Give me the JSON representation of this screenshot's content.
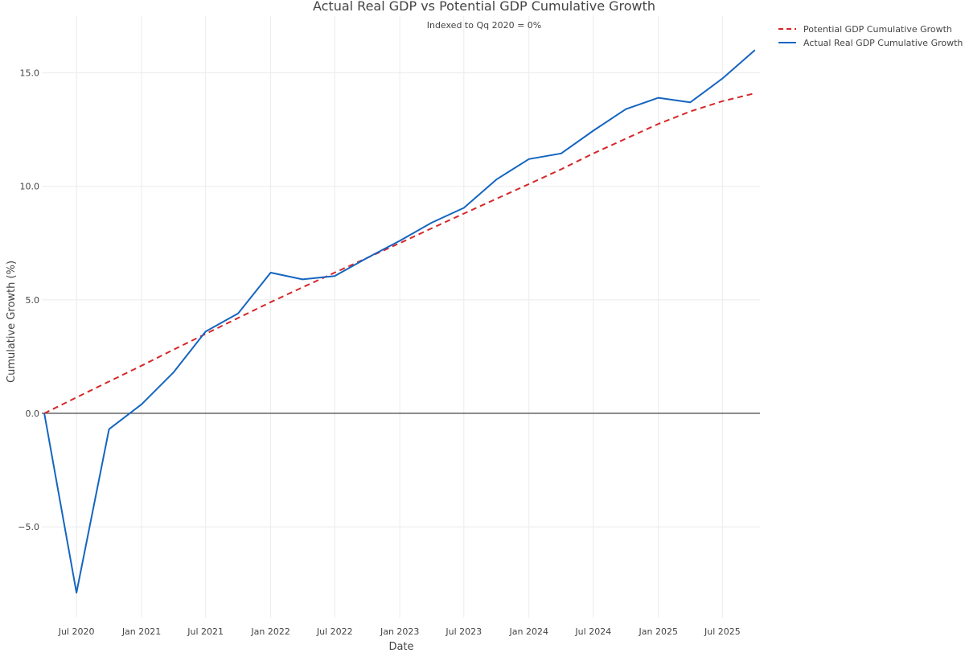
{
  "chart_data": {
    "type": "line",
    "title": "Actual Real GDP vs Potential GDP Cumulative Growth",
    "subtitle": "Indexed to Qq 2020 = 0%",
    "xlabel": "Date",
    "ylabel": "Cumulative Growth (%)",
    "x_range": [
      "2020-03-25",
      "2025-10-15"
    ],
    "ylim": [
      -9.0,
      17.5
    ],
    "x_ticks": [
      {
        "date": "2020-07-01",
        "label": "Jul 2020"
      },
      {
        "date": "2021-01-01",
        "label": "Jan 2021"
      },
      {
        "date": "2021-07-01",
        "label": "Jul 2021"
      },
      {
        "date": "2022-01-01",
        "label": "Jan 2022"
      },
      {
        "date": "2022-07-01",
        "label": "Jul 2022"
      },
      {
        "date": "2023-01-01",
        "label": "Jan 2023"
      },
      {
        "date": "2023-07-01",
        "label": "Jul 2023"
      },
      {
        "date": "2024-01-01",
        "label": "Jan 2024"
      },
      {
        "date": "2024-07-01",
        "label": "Jul 2024"
      },
      {
        "date": "2025-01-01",
        "label": "Jan 2025"
      },
      {
        "date": "2025-07-01",
        "label": "Jul 2025"
      }
    ],
    "y_ticks": [
      {
        "value": -5,
        "label": "−5.0"
      },
      {
        "value": 0,
        "label": "0.0"
      },
      {
        "value": 5,
        "label": "5.0"
      },
      {
        "value": 10,
        "label": "10.0"
      },
      {
        "value": 15,
        "label": "15.0"
      }
    ],
    "grid": true,
    "zero_line": true,
    "legend_position": "top-right",
    "series": [
      {
        "name": "Potential GDP Cumulative Growth",
        "color": "#d62728",
        "dash": "dashed",
        "points": [
          [
            "2020-04-01",
            0.0
          ],
          [
            "2020-07-01",
            0.7
          ],
          [
            "2020-10-01",
            1.4
          ],
          [
            "2021-01-01",
            2.1
          ],
          [
            "2021-04-01",
            2.8
          ],
          [
            "2021-07-01",
            3.5
          ],
          [
            "2021-10-01",
            4.2
          ],
          [
            "2022-01-01",
            4.9
          ],
          [
            "2022-04-01",
            5.55
          ],
          [
            "2022-07-01",
            6.2
          ],
          [
            "2022-10-01",
            6.85
          ],
          [
            "2023-01-01",
            7.5
          ],
          [
            "2023-04-01",
            8.15
          ],
          [
            "2023-07-01",
            8.8
          ],
          [
            "2023-10-01",
            9.45
          ],
          [
            "2024-01-01",
            10.1
          ],
          [
            "2024-04-01",
            10.75
          ],
          [
            "2024-07-01",
            11.45
          ],
          [
            "2024-10-01",
            12.1
          ],
          [
            "2025-01-01",
            12.75
          ],
          [
            "2025-04-01",
            13.3
          ],
          [
            "2025-07-01",
            13.75
          ],
          [
            "2025-10-01",
            14.1
          ]
        ]
      },
      {
        "name": "Actual Real GDP Cumulative Growth",
        "color": "#1565c0",
        "dash": "solid",
        "points": [
          [
            "2020-04-01",
            0.0
          ],
          [
            "2020-07-01",
            -7.9
          ],
          [
            "2020-10-01",
            -0.7
          ],
          [
            "2021-01-01",
            0.4
          ],
          [
            "2021-04-01",
            1.8
          ],
          [
            "2021-07-01",
            3.6
          ],
          [
            "2021-10-01",
            4.4
          ],
          [
            "2022-01-01",
            6.2
          ],
          [
            "2022-04-01",
            5.9
          ],
          [
            "2022-07-01",
            6.05
          ],
          [
            "2022-10-01",
            6.85
          ],
          [
            "2023-01-01",
            7.6
          ],
          [
            "2023-04-01",
            8.4
          ],
          [
            "2023-07-01",
            9.05
          ],
          [
            "2023-10-01",
            10.3
          ],
          [
            "2024-01-01",
            11.2
          ],
          [
            "2024-04-01",
            11.45
          ],
          [
            "2024-07-01",
            12.45
          ],
          [
            "2024-10-01",
            13.4
          ],
          [
            "2025-01-01",
            13.9
          ],
          [
            "2025-04-01",
            13.7
          ],
          [
            "2025-07-01",
            14.75
          ],
          [
            "2025-10-01",
            16.0
          ]
        ]
      }
    ]
  }
}
